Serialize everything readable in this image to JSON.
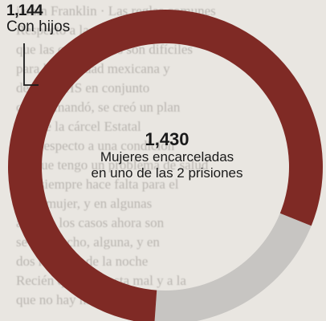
{
  "chart_data": {
    "type": "pie",
    "variant": "donut",
    "slices": [
      {
        "label": "Con hijos",
        "value": 1144,
        "color": "#7f2a25"
      },
      {
        "label": "",
        "value": 286,
        "color": "#c7c5c2"
      }
    ],
    "total": {
      "value": "1,430",
      "label_line1": "Mujeres encarceladas",
      "label_line2": "en uno de las 2 prisiones"
    },
    "callout": {
      "value": "1,144",
      "label": "Con hijos"
    }
  }
}
